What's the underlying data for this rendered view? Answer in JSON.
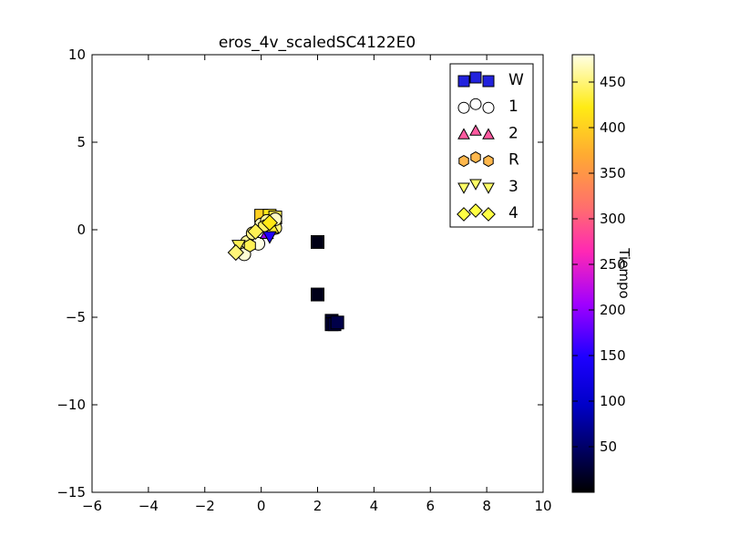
{
  "chart_data": {
    "type": "scatter",
    "title": "eros_4v_scaledSC4122E0",
    "xlim": [
      -6,
      10
    ],
    "ylim": [
      -15,
      10
    ],
    "xticks": [
      -6,
      -4,
      -2,
      0,
      2,
      4,
      6,
      8,
      10
    ],
    "yticks": [
      10,
      5,
      0,
      -5,
      -10,
      -15
    ],
    "xtick_labels": [
      "−6",
      "−4",
      "−2",
      "0",
      "2",
      "4",
      "6",
      "8",
      "10"
    ],
    "ytick_labels": [
      "10",
      "5",
      "0",
      "−5",
      "−10",
      "−15"
    ],
    "grid": false,
    "legend_position": "top-right",
    "colorbar": {
      "label": "Tiempo",
      "range": [
        0,
        480
      ],
      "ticks": [
        50,
        100,
        150,
        200,
        250,
        300,
        350,
        400,
        450
      ],
      "colormap": "gnuplot2"
    },
    "series": [
      {
        "name": "W",
        "marker": "square",
        "legend_color": "#2222dd",
        "points": [
          {
            "x": 2.0,
            "y": -0.7,
            "t": 10
          },
          {
            "x": 2.0,
            "y": -3.7,
            "t": 12
          },
          {
            "x": 2.5,
            "y": -5.2,
            "t": 20
          },
          {
            "x": 2.5,
            "y": -5.4,
            "t": 25
          },
          {
            "x": 2.6,
            "y": -5.4,
            "t": 30
          },
          {
            "x": 2.7,
            "y": -5.3,
            "t": 35
          },
          {
            "x": 0.0,
            "y": 0.8,
            "t": 400
          },
          {
            "x": 0.3,
            "y": 0.8,
            "t": 420
          },
          {
            "x": 0.5,
            "y": 0.7,
            "t": 440
          }
        ]
      },
      {
        "name": "1",
        "marker": "circle",
        "legend_color": "#ffffff",
        "points": [
          {
            "x": -0.8,
            "y": -1.2,
            "t": 470
          },
          {
            "x": -0.6,
            "y": -1.0,
            "t": 465
          },
          {
            "x": -0.5,
            "y": -0.7,
            "t": 460
          },
          {
            "x": -0.3,
            "y": -0.2,
            "t": 455
          },
          {
            "x": 0.0,
            "y": 0.3,
            "t": 470
          },
          {
            "x": 0.2,
            "y": 0.5,
            "t": 460
          },
          {
            "x": 0.5,
            "y": 0.1,
            "t": 450
          },
          {
            "x": 0.5,
            "y": 0.6,
            "t": 470
          },
          {
            "x": -0.1,
            "y": -0.8,
            "t": 480
          },
          {
            "x": -0.6,
            "y": -1.4,
            "t": 475
          }
        ]
      },
      {
        "name": "2",
        "marker": "triangle-up",
        "legend_color": "#ff5aa0",
        "points": [
          {
            "x": 0.2,
            "y": -0.2,
            "t": 200
          },
          {
            "x": 0.4,
            "y": 0.1,
            "t": 430
          }
        ]
      },
      {
        "name": "R",
        "marker": "hexagon",
        "legend_color": "#ffb84d",
        "points": [
          {
            "x": -0.4,
            "y": -0.9,
            "t": 440
          },
          {
            "x": 0.1,
            "y": 0.2,
            "t": 445
          }
        ]
      },
      {
        "name": "3",
        "marker": "triangle-down",
        "legend_color": "#ffff66",
        "points": [
          {
            "x": -0.8,
            "y": -0.9,
            "t": 440
          },
          {
            "x": 0.3,
            "y": -0.4,
            "t": 150
          }
        ]
      },
      {
        "name": "4",
        "marker": "diamond",
        "legend_color": "#ffff44",
        "points": [
          {
            "x": -0.9,
            "y": -1.3,
            "t": 450
          },
          {
            "x": -0.2,
            "y": -0.1,
            "t": 440
          },
          {
            "x": 0.3,
            "y": 0.4,
            "t": 420
          }
        ]
      }
    ]
  }
}
